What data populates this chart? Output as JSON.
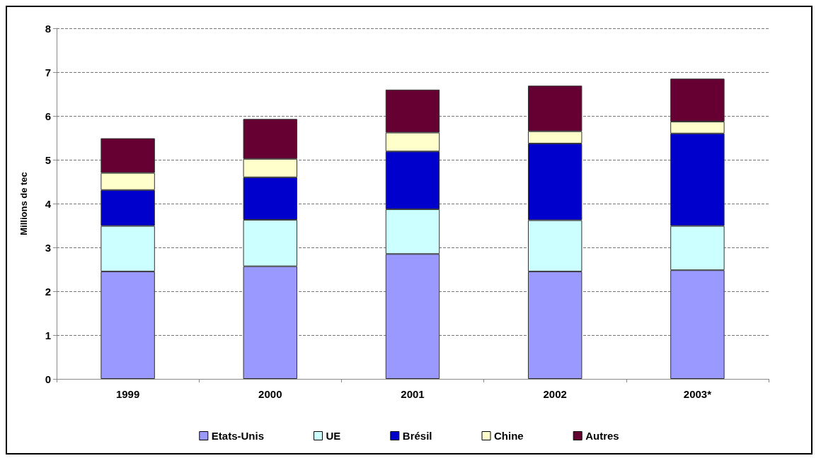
{
  "chart_data": {
    "type": "bar",
    "stacked": true,
    "ylabel": "Millions de tec",
    "categories": [
      "1999",
      "2000",
      "2001",
      "2002",
      "2003*"
    ],
    "series": [
      {
        "name": "Etats-Unis",
        "color": "#9999ff",
        "values": [
          2.45,
          2.57,
          2.85,
          2.45,
          2.48
        ]
      },
      {
        "name": "UE",
        "color": "#ccffff",
        "values": [
          1.04,
          1.06,
          1.02,
          1.17,
          1.01
        ]
      },
      {
        "name": "Brésil",
        "color": "#0000cc",
        "values": [
          0.82,
          0.97,
          1.32,
          1.75,
          2.11
        ]
      },
      {
        "name": "Chine",
        "color": "#ffffcc",
        "values": [
          0.39,
          0.42,
          0.43,
          0.28,
          0.27
        ]
      },
      {
        "name": "Autres",
        "color": "#660033",
        "values": [
          0.79,
          0.91,
          0.98,
          1.04,
          0.98
        ]
      }
    ],
    "ylim": [
      0,
      8
    ],
    "yticks": [
      0,
      1,
      2,
      3,
      4,
      5,
      6,
      7,
      8
    ],
    "grid": "y",
    "legend": "bottom"
  }
}
